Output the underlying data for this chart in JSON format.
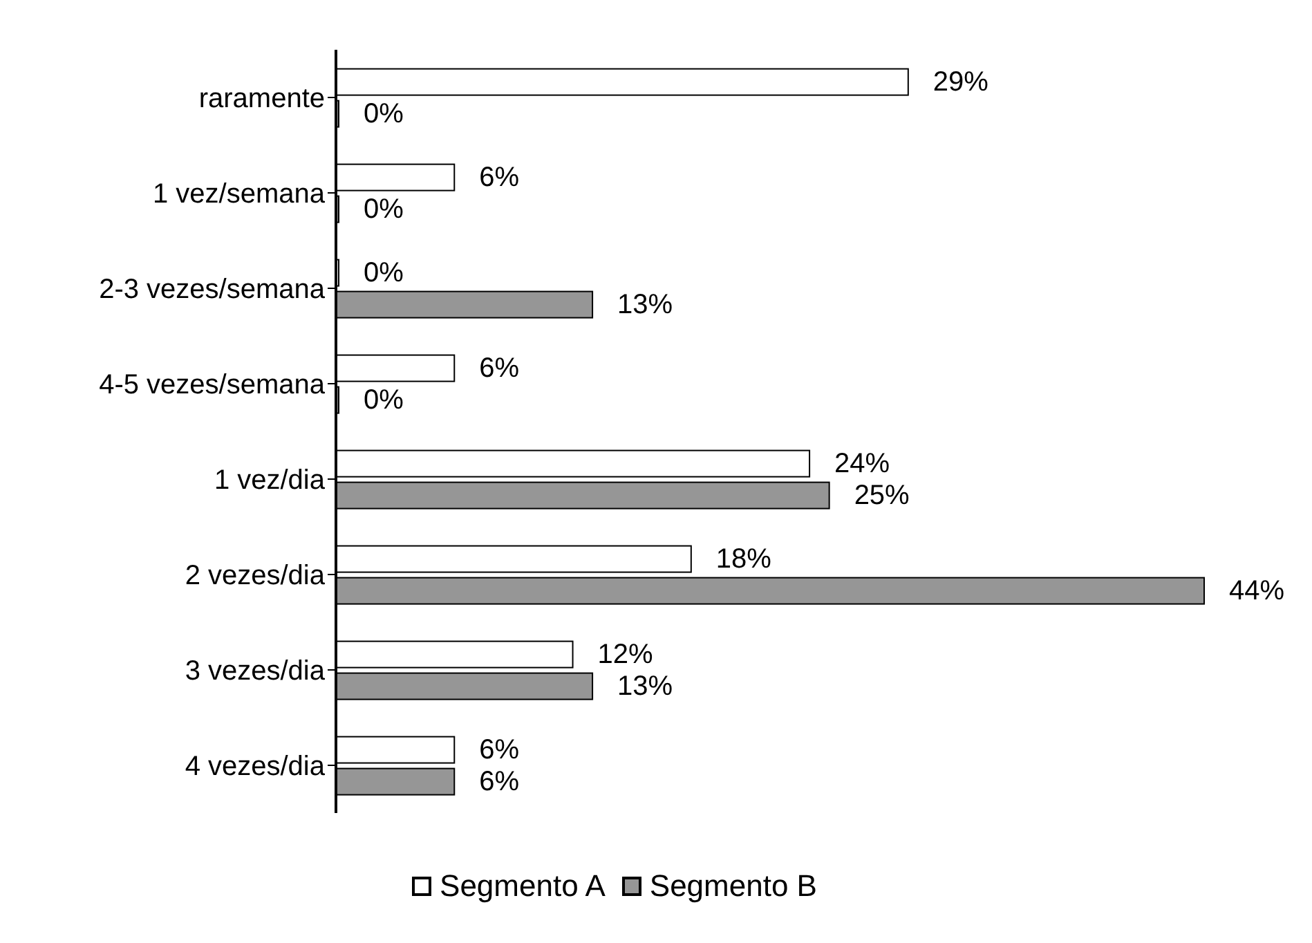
{
  "chart_data": {
    "type": "bar",
    "orientation": "horizontal",
    "categories": [
      "raramente",
      "1 vez/semana",
      "2-3 vezes/semana",
      "4-5 vezes/semana",
      "1 vez/dia",
      "2 vezes/dia",
      "3 vezes/dia",
      "4 vezes/dia"
    ],
    "series": [
      {
        "name": "Segmento A",
        "color": "#ffffff",
        "values": [
          29,
          6,
          0,
          6,
          24,
          18,
          12,
          6
        ],
        "value_labels": [
          "29%",
          "6%",
          "0%",
          "6%",
          "24%",
          "18%",
          "12%",
          "6%"
        ]
      },
      {
        "name": "Segmento B",
        "color": "#969696",
        "values": [
          0,
          0,
          13,
          0,
          25,
          44,
          13,
          6
        ],
        "value_labels": [
          "0%",
          "0%",
          "13%",
          "0%",
          "25%",
          "44%",
          "13%",
          "6%"
        ]
      }
    ],
    "legend": "bottom"
  }
}
